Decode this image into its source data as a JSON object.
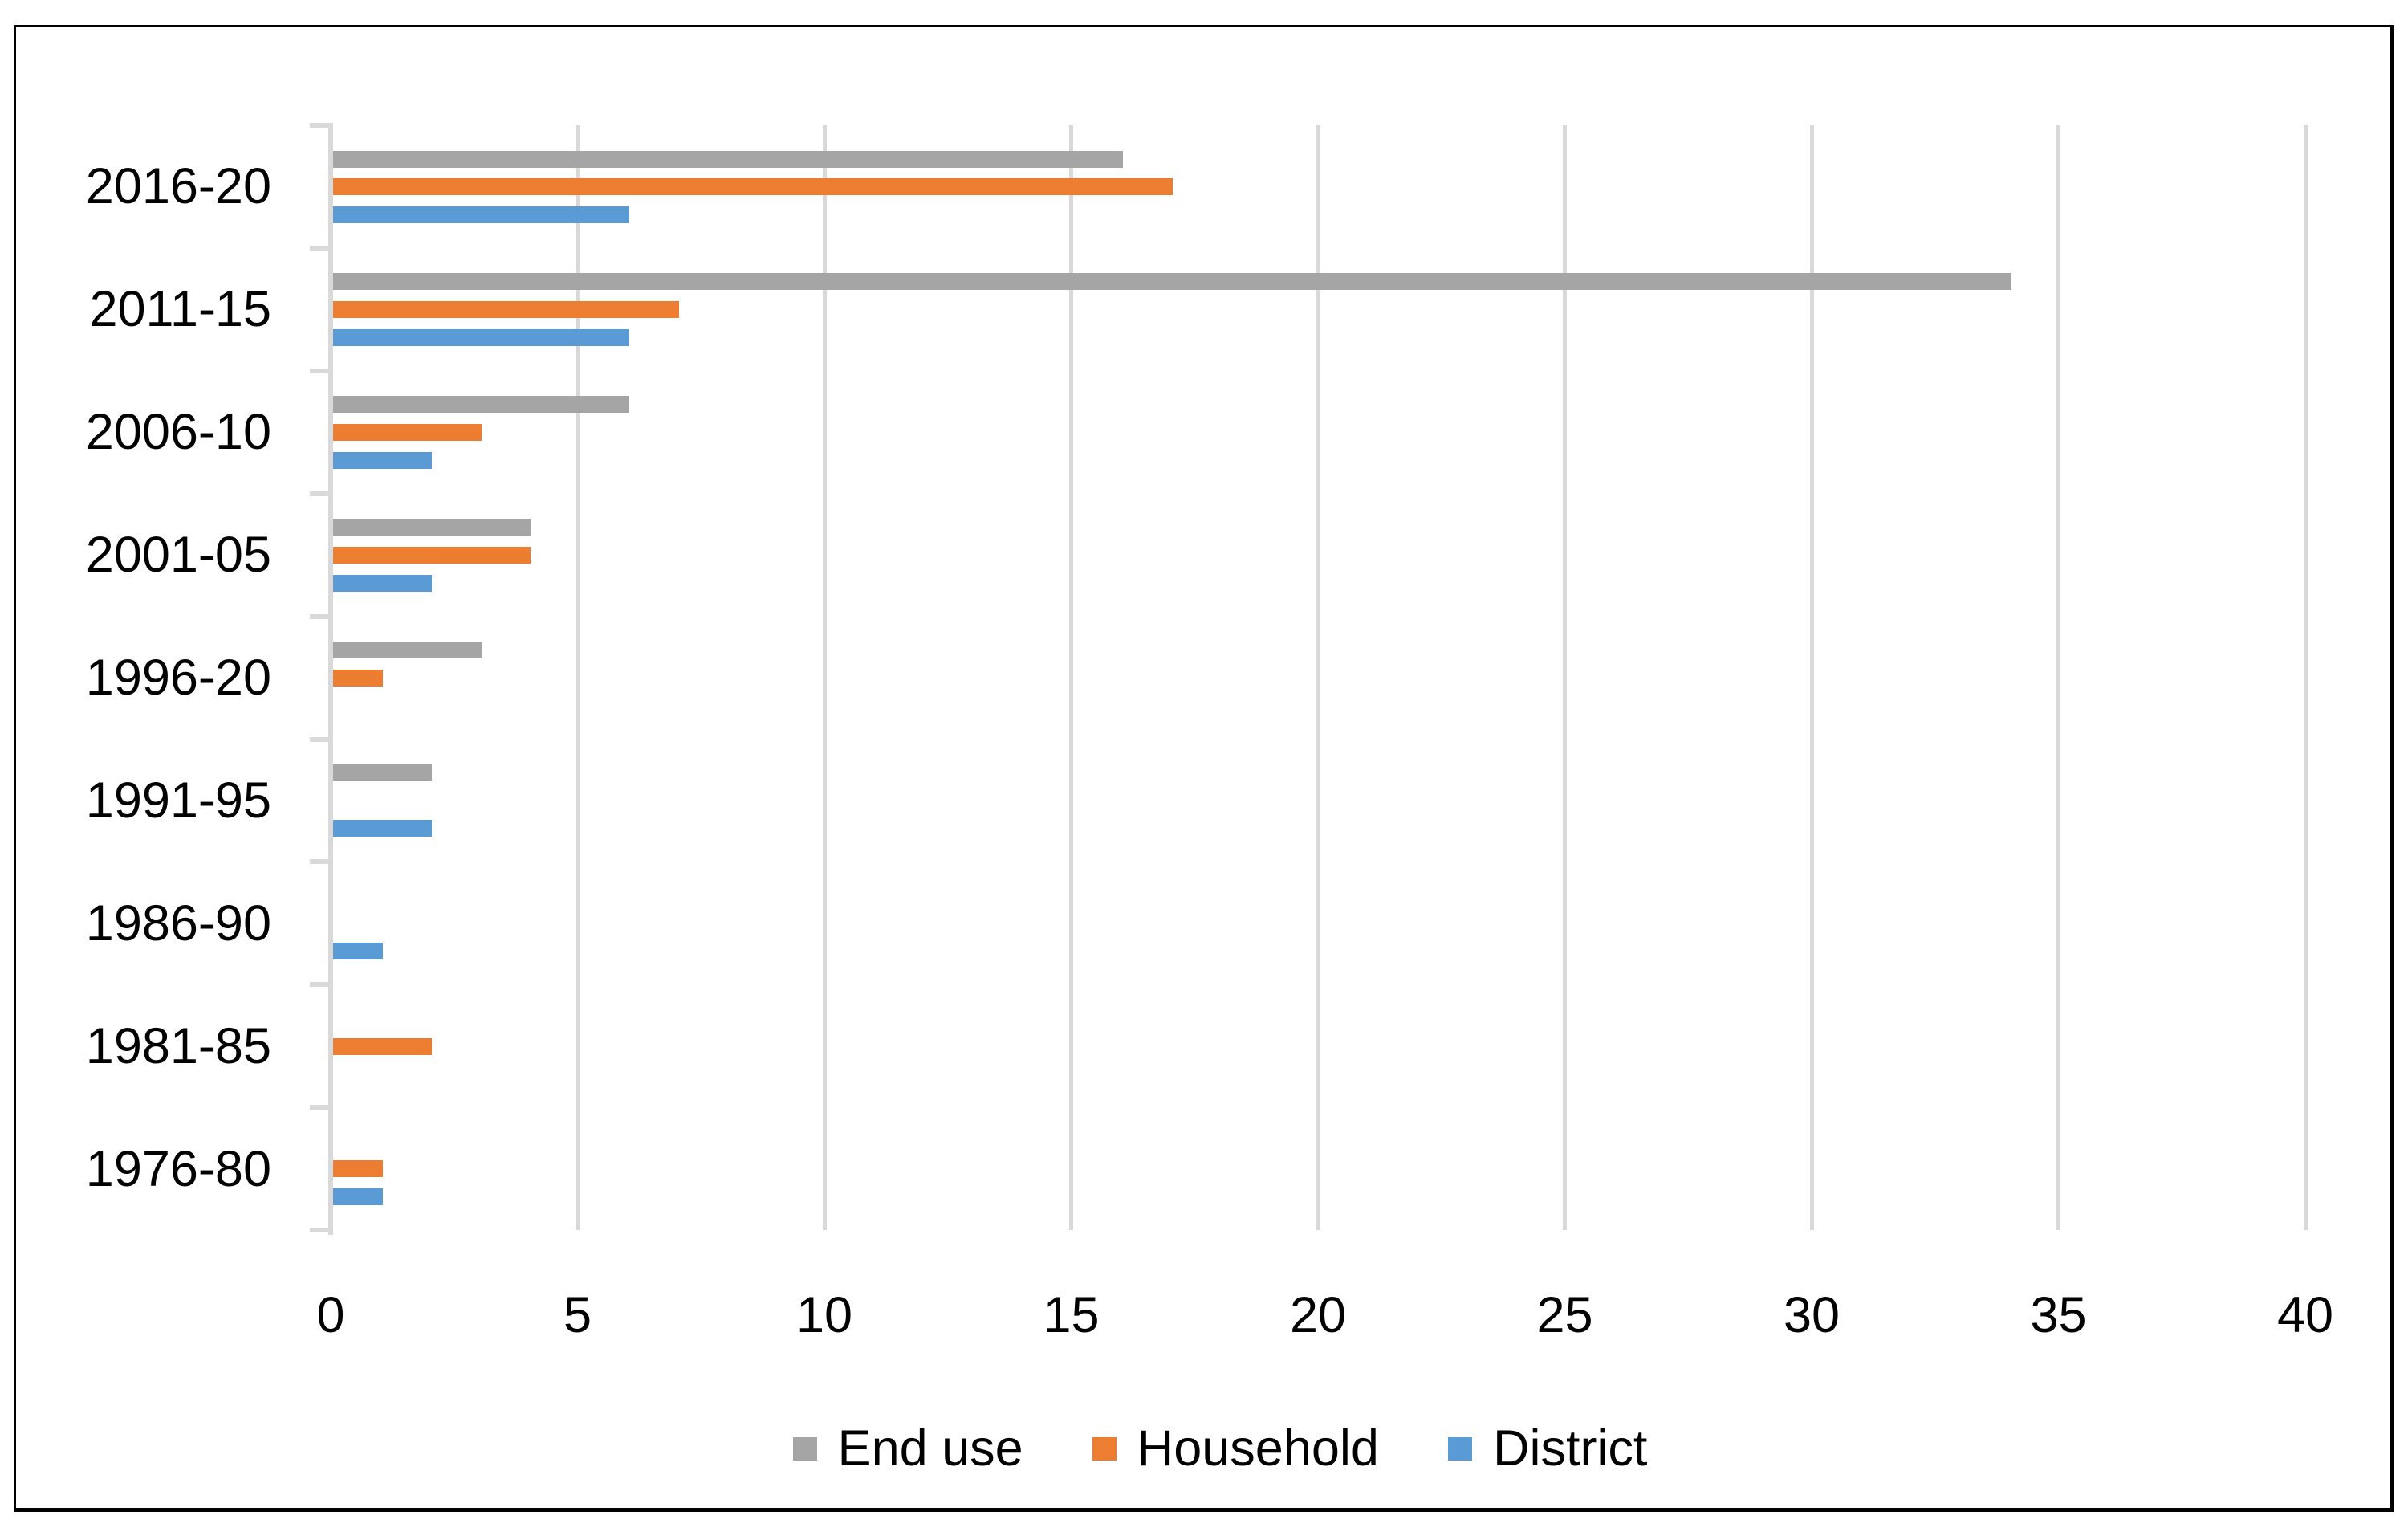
{
  "chart_data": {
    "type": "bar",
    "orientation": "horizontal",
    "title": "",
    "xlabel": "",
    "ylabel": "",
    "categories": [
      "2016-20",
      "2011-15",
      "2006-10",
      "2001-05",
      "1996-20",
      "1991-95",
      "1986-90",
      "1981-85",
      "1976-80"
    ],
    "series": [
      {
        "name": "End use",
        "color": "#A5A5A5",
        "values": [
          16,
          34,
          6,
          4,
          3,
          2,
          0,
          0,
          0
        ]
      },
      {
        "name": "Household",
        "color": "#ED7D31",
        "values": [
          17,
          7,
          3,
          4,
          1,
          0,
          0,
          2,
          1
        ]
      },
      {
        "name": "District",
        "color": "#5B9BD5",
        "values": [
          6,
          6,
          2,
          2,
          0,
          2,
          1,
          0,
          1
        ]
      }
    ],
    "xlim": [
      0,
      40
    ],
    "xticks": [
      0,
      5,
      10,
      15,
      20,
      25,
      30,
      35,
      40
    ],
    "grid": true,
    "gridline_color": "#D9D9D9",
    "axis_color": "#D9D9D9",
    "text_color": "#000000",
    "frame_border_color": "#000000",
    "legend_position": "bottom",
    "legend_labels": [
      "End use",
      "Household",
      "District"
    ]
  }
}
